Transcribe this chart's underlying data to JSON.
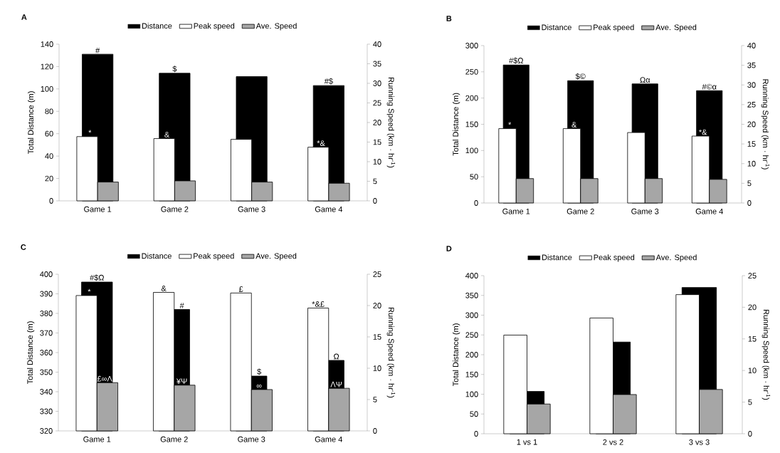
{
  "chart_data": [
    {
      "type": "bar",
      "title": "A",
      "categories": [
        "Game 1",
        "Game 2",
        "Game 3",
        "Game 4"
      ],
      "ylabel": "Total Distance (m)",
      "y2label": "Running Speed (km · hr$^{-1}$)",
      "ylim": [
        0,
        140
      ],
      "yticks": [
        0,
        20,
        40,
        60,
        80,
        100,
        120,
        140
      ],
      "y2lim": [
        0,
        40
      ],
      "y2ticks": [
        0,
        5,
        10,
        15,
        20,
        25,
        30,
        35,
        40
      ],
      "legend": "top",
      "series": [
        {
          "name": "Distance",
          "color": "#000000",
          "values": [
            131,
            114,
            111,
            103
          ],
          "value_labels": [
            "#",
            "$",
            null,
            "#$"
          ]
        },
        {
          "name": "Peak speed",
          "color": "#ffffff",
          "axis": "y2",
          "values": [
            16.4,
            15.9,
            15.7,
            13.7
          ],
          "value_labels": [
            "*",
            "&",
            null,
            "*&"
          ]
        },
        {
          "name": "Ave. Speed",
          "color": "#a6a6a6",
          "axis": "y2",
          "values": [
            4.8,
            5.1,
            4.8,
            4.5
          ]
        }
      ]
    },
    {
      "type": "bar",
      "title": "B",
      "categories": [
        "Game 1",
        "Game 2",
        "Game 3",
        "Game 4"
      ],
      "ylabel": "Total Distance (m)",
      "y2label": "Running Speed (km · hr$^{-1}$)",
      "ylim": [
        0,
        300
      ],
      "yticks": [
        0,
        50,
        100,
        150,
        200,
        250,
        300
      ],
      "y2lim": [
        0,
        40
      ],
      "y2ticks": [
        0,
        5,
        10,
        15,
        20,
        25,
        30,
        35,
        40
      ],
      "legend": "top",
      "series": [
        {
          "name": "Distance",
          "color": "#000000",
          "values": [
            263,
            233,
            227,
            214
          ],
          "value_labels": [
            "#$Ω",
            "$©",
            "Ωα",
            "#©α"
          ]
        },
        {
          "name": "Peak speed",
          "color": "#ffffff",
          "axis": "y2",
          "values": [
            18.9,
            18.9,
            17.9,
            17.0
          ],
          "value_labels": [
            "*",
            "&",
            null,
            "*&"
          ]
        },
        {
          "name": "Ave. Speed",
          "color": "#a6a6a6",
          "axis": "y2",
          "values": [
            6.2,
            6.2,
            6.2,
            6.0
          ]
        }
      ]
    },
    {
      "type": "bar",
      "title": "C",
      "categories": [
        "Game 1",
        "Game 2",
        "Game 3",
        "Game 4"
      ],
      "ylabel": "Total Distance (m)",
      "y2label": "Running Speed (km · hr$^{-1}$)",
      "ylim": [
        320,
        400
      ],
      "yticks": [
        320,
        330,
        340,
        350,
        360,
        370,
        380,
        390,
        400
      ],
      "y2lim": [
        0,
        25
      ],
      "y2ticks": [
        0,
        5,
        10,
        15,
        20,
        25
      ],
      "legend": "top",
      "series": [
        {
          "name": "Distance",
          "color": "#000000",
          "values": [
            396,
            382,
            348,
            356
          ],
          "value_labels": [
            "#$Ω",
            "#",
            "$",
            "Ω"
          ]
        },
        {
          "name": "Peak speed",
          "color": "#ffffff",
          "axis": "y2",
          "values": [
            21.6,
            22.1,
            22.0,
            19.6
          ],
          "value_labels": [
            "*",
            "&",
            "£",
            "*&£"
          ]
        },
        {
          "name": "Ave. Speed",
          "color": "#a6a6a6",
          "axis": "y2",
          "values": [
            7.7,
            7.3,
            6.6,
            6.8
          ],
          "value_labels": [
            "£∞Λ",
            "¥Ψ",
            "∞",
            "ΛΨ"
          ]
        }
      ]
    },
    {
      "type": "bar",
      "title": "D",
      "categories": [
        "1 vs 1",
        "2 vs 2",
        "3 vs 3"
      ],
      "ylabel": "Total Distance (m)",
      "y2label": "Running Speed (km · hr$^{-1}$)",
      "ylim": [
        0,
        400
      ],
      "yticks": [
        0,
        50,
        100,
        150,
        200,
        250,
        300,
        350,
        400
      ],
      "y2lim": [
        0,
        25
      ],
      "y2ticks": [
        0,
        5,
        10,
        15,
        20,
        25
      ],
      "legend": "top",
      "series": [
        {
          "name": "Distance",
          "color": "#000000",
          "values": [
            107,
            232,
            370
          ]
        },
        {
          "name": "Peak speed",
          "color": "#ffffff",
          "axis": "y2",
          "values": [
            15.6,
            18.3,
            22.0
          ]
        },
        {
          "name": "Ave. Speed",
          "color": "#a6a6a6",
          "axis": "y2",
          "values": [
            4.7,
            6.2,
            7.0
          ]
        }
      ]
    }
  ]
}
